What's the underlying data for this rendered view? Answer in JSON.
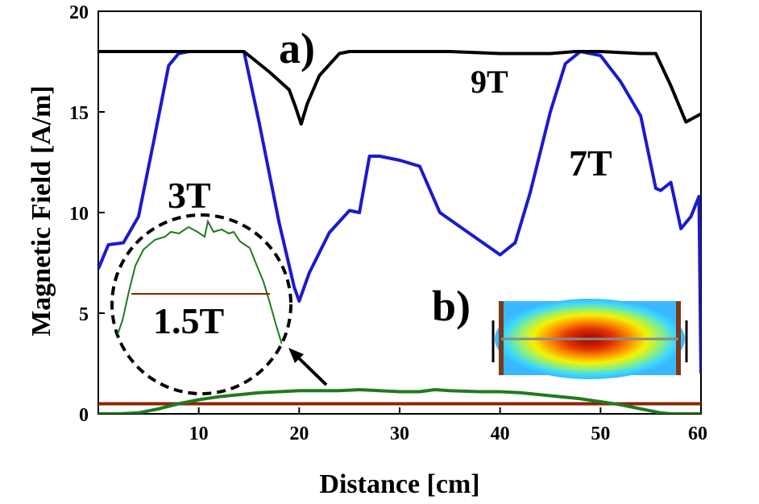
{
  "chart_data": {
    "type": "line",
    "xlabel": "Distance [cm]",
    "ylabel": "Magnetic Field [A/m]",
    "xlim": [
      0,
      60
    ],
    "ylim": [
      0,
      20
    ],
    "xticks": [
      "10",
      "20",
      "30",
      "40",
      "50",
      "60"
    ],
    "yticks": [
      "0",
      "5",
      "10",
      "15",
      "20"
    ],
    "grid": false,
    "colors": {
      "9T": "#000000",
      "7T": "#1a1ad0",
      "3T": "#1f7a1f",
      "1.5T": "#8b2500"
    },
    "series": [
      {
        "name": "9T",
        "x": [
          0,
          14.5,
          17,
          19,
          19.6,
          20.2,
          20.8,
          22,
          24,
          25,
          27,
          30,
          35,
          40,
          45,
          47.5,
          50,
          54,
          55.5,
          57,
          58.5,
          60
        ],
        "y": [
          18,
          18,
          17,
          16.1,
          15.3,
          14.4,
          15.4,
          16.8,
          17.9,
          18,
          18,
          18,
          18,
          17.9,
          17.9,
          18,
          18,
          17.9,
          17.9,
          16.3,
          14.5,
          14.9
        ]
      },
      {
        "name": "7T",
        "x": [
          0,
          1,
          2.5,
          4,
          5.5,
          7,
          8,
          9,
          10,
          11,
          12,
          14.5,
          16,
          18,
          19.5,
          20,
          21,
          23,
          25,
          26,
          27,
          28,
          30,
          32,
          34,
          36,
          38,
          40,
          41.5,
          43,
          45,
          46.5,
          48,
          50,
          52,
          54,
          55.5,
          56,
          57,
          58,
          59,
          59.8,
          60
        ],
        "y": [
          7.2,
          8.4,
          8.5,
          9.8,
          13.5,
          17.3,
          17.9,
          18,
          18,
          18,
          18,
          18,
          14.5,
          9.5,
          6.3,
          5.6,
          7,
          9,
          10.1,
          10,
          12.8,
          12.8,
          12.6,
          12.3,
          10,
          9.3,
          8.6,
          7.9,
          8.5,
          11,
          15,
          17.4,
          18,
          17.8,
          16.5,
          14.8,
          11.2,
          11.1,
          11.5,
          9.2,
          9.8,
          10.8,
          2
        ]
      },
      {
        "name": "3T",
        "x": [
          0,
          2,
          4,
          6,
          8,
          10,
          12,
          14,
          16,
          18,
          20,
          22,
          24,
          26,
          28,
          30,
          32,
          33.5,
          35,
          38,
          40,
          42,
          44,
          46,
          48,
          50,
          52,
          54,
          56,
          57,
          58,
          60
        ],
        "y": [
          0,
          0,
          0.05,
          0.25,
          0.5,
          0.7,
          0.85,
          0.95,
          1.05,
          1.1,
          1.15,
          1.15,
          1.15,
          1.2,
          1.15,
          1.1,
          1.1,
          1.2,
          1.15,
          1.1,
          1.1,
          1.05,
          0.95,
          0.85,
          0.75,
          0.6,
          0.45,
          0.25,
          0.05,
          0,
          0,
          0
        ]
      },
      {
        "name": "1.5T",
        "x": [
          0,
          60
        ],
        "y": [
          0.5,
          0.5
        ]
      }
    ],
    "annotations": [
      {
        "text": "a)"
      },
      {
        "text": "b)"
      },
      {
        "text": "9T"
      },
      {
        "text": "7T"
      },
      {
        "text": "3T"
      },
      {
        "text": "1.5T"
      }
    ]
  }
}
